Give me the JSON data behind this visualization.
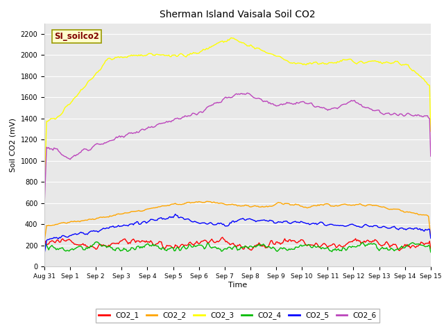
{
  "title": "Sherman Island Vaisala Soil CO2",
  "xlabel": "Time",
  "ylabel": "Soil CO2 (mV)",
  "ylim": [
    0,
    2300
  ],
  "yticks": [
    0,
    200,
    400,
    600,
    800,
    1000,
    1200,
    1400,
    1600,
    1800,
    2000,
    2200
  ],
  "annotation_text": "SI_soilco2",
  "annotation_color": "#800000",
  "annotation_bg": "#FFFFCC",
  "annotation_border": "#999900",
  "plot_bg": "#E8E8E8",
  "grid_color": "#FFFFFF",
  "colors": {
    "CO2_1": "#FF0000",
    "CO2_2": "#FFA500",
    "CO2_3": "#FFFF00",
    "CO2_4": "#00BB00",
    "CO2_5": "#0000FF",
    "CO2_6": "#BB44BB"
  },
  "xtick_labels": [
    "Aug 31",
    "Sep 1",
    "Sep 2",
    "Sep 3",
    "Sep 4",
    "Sep 5",
    "Sep 6",
    "Sep 7",
    "Sep 8",
    "Sep 9",
    "Sep 10",
    "Sep 11",
    "Sep 12",
    "Sep 13",
    "Sep 14",
    "Sep 15"
  ],
  "line_width": 1.0
}
